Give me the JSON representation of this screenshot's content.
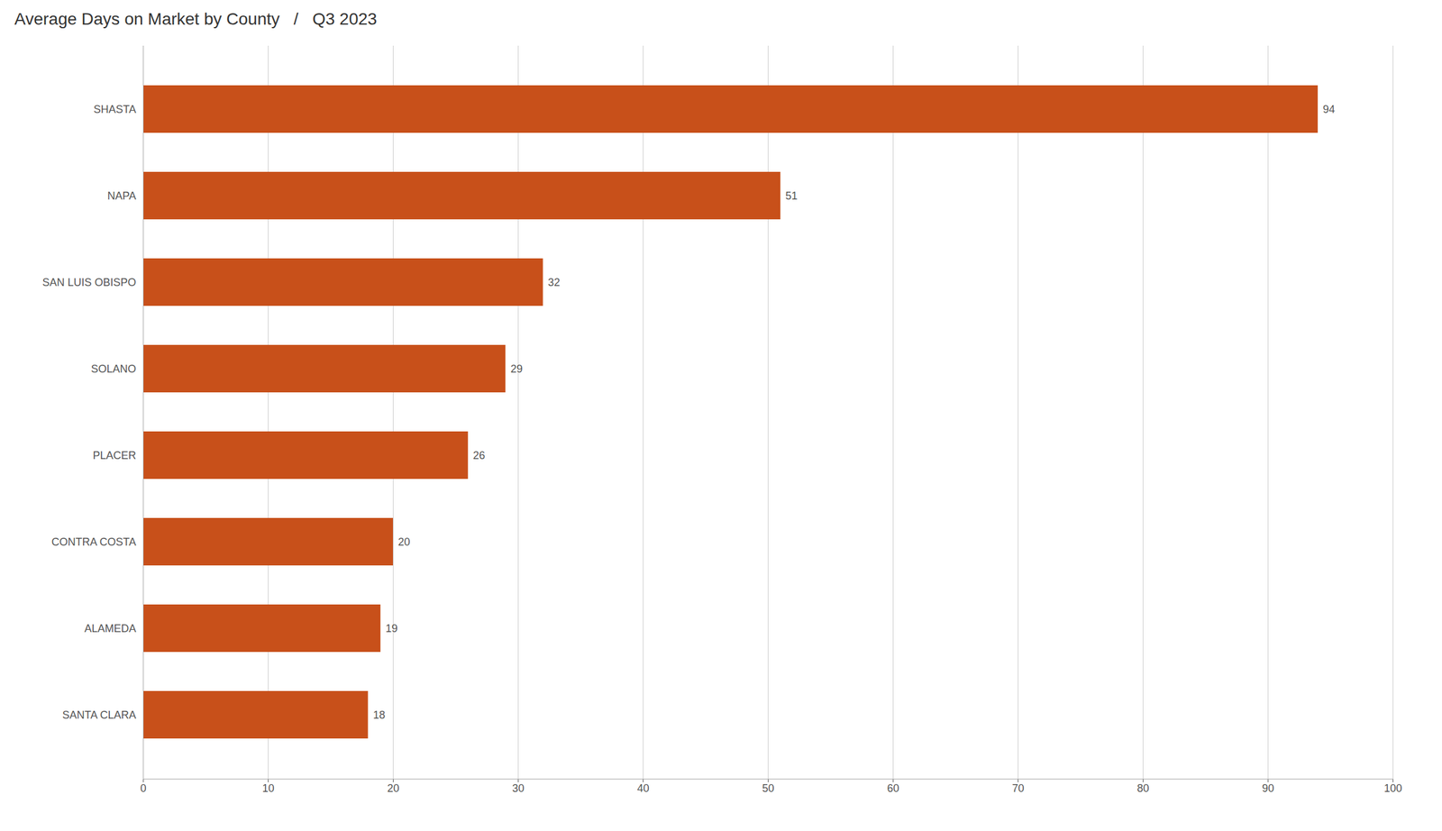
{
  "chart_data": {
    "type": "bar",
    "orientation": "horizontal",
    "title": "Average Days on Market by County   /   Q3 2023",
    "categories": [
      "SHASTA",
      "NAPA",
      "SAN LUIS OBISPO",
      "SOLANO",
      "PLACER",
      "CONTRA COSTA",
      "ALAMEDA",
      "SANTA CLARA"
    ],
    "values": [
      94,
      51,
      32,
      29,
      26,
      20,
      19,
      18
    ],
    "color": "#C8501A",
    "xlim": [
      0,
      100
    ],
    "xticks": [
      0,
      10,
      20,
      30,
      40,
      50,
      60,
      70,
      80,
      90,
      100
    ],
    "grid": true,
    "data_labels": true
  }
}
